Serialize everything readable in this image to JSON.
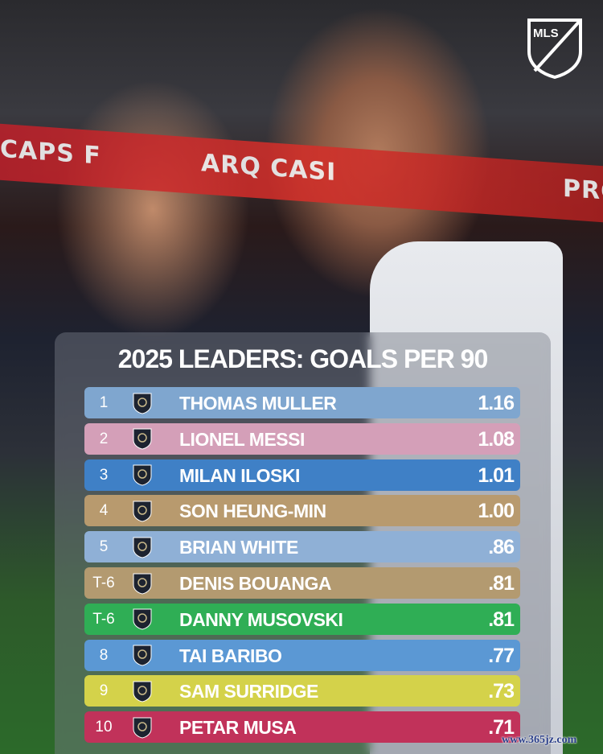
{
  "title": "2025 LEADERS: GOALS PER 90",
  "brand": "MLS",
  "watermark": "www.365jz.com",
  "background_banner": [
    "CAPS F",
    "ARQ CASI",
    "PRO"
  ],
  "rows": [
    {
      "rank": "1",
      "player": "THOMAS MULLER",
      "value": "1.16",
      "crest": "vancouver-whitecaps-crest-icon",
      "color": "#7fa6cf"
    },
    {
      "rank": "2",
      "player": "LIONEL MESSI",
      "value": "1.08",
      "crest": "inter-miami-crest-icon",
      "color": "#d49fb8"
    },
    {
      "rank": "3",
      "player": "MILAN ILOSKI",
      "value": "1.01",
      "crest": "philadelphia-union-crest-icon",
      "color": "#3f80c6"
    },
    {
      "rank": "4",
      "player": "SON HEUNG-MIN",
      "value": "1.00",
      "crest": "lafc-crest-icon",
      "color": "#b89a6e"
    },
    {
      "rank": "5",
      "player": "BRIAN WHITE",
      "value": ".86",
      "crest": "vancouver-whitecaps-crest-icon",
      "color": "#8fb0d6"
    },
    {
      "rank": "T-6",
      "player": "DENIS BOUANGA",
      "value": ".81",
      "crest": "lafc-crest-icon",
      "color": "#b39a70"
    },
    {
      "rank": "T-6",
      "player": "DANNY MUSOVSKI",
      "value": ".81",
      "crest": "seattle-sounders-crest-icon",
      "color": "#2fae55"
    },
    {
      "rank": "8",
      "player": "TAI BARIBO",
      "value": ".77",
      "crest": "philadelphia-union-crest-icon",
      "color": "#5b98d4"
    },
    {
      "rank": "9",
      "player": "SAM SURRIDGE",
      "value": ".73",
      "crest": "nashville-sc-crest-icon",
      "color": "#d4d24a"
    },
    {
      "rank": "10",
      "player": "PETAR MUSA",
      "value": ".71",
      "crest": "fc-dallas-crest-icon",
      "color": "#c1325a"
    }
  ]
}
